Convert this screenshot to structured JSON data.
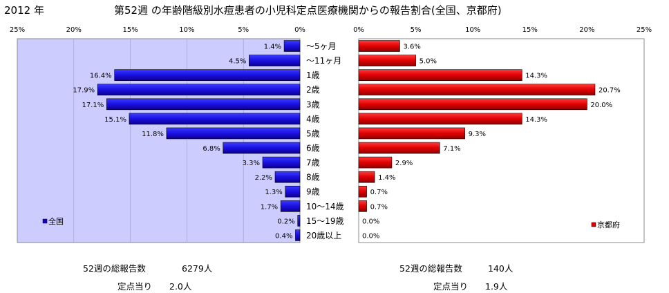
{
  "header": {
    "year": "2012 年",
    "title": "第52週 の年齢階級別水痘患者の小児科定点医療機関からの報告割合(全国、京都府)"
  },
  "chart_data": {
    "type": "bar",
    "orientation": "horizontal",
    "categories": [
      "～5ヶ月",
      "～11ヶ月",
      "1歳",
      "2歳",
      "3歳",
      "4歳",
      "5歳",
      "6歳",
      "7歳",
      "8歳",
      "9歳",
      "10～14歳",
      "15～19歳",
      "20歳以上"
    ],
    "xlim": [
      0,
      25
    ],
    "x_ticks": [
      "25%",
      "20%",
      "15%",
      "10%",
      "5%",
      "0%"
    ],
    "x_ticks_right": [
      "0%",
      "5%",
      "10%",
      "15%",
      "20%",
      "25%"
    ],
    "legend_position": "bottom-left",
    "series": [
      {
        "name": "全国",
        "color": "#1400cc",
        "values": [
          1.4,
          4.5,
          16.4,
          17.9,
          17.1,
          15.1,
          11.8,
          6.8,
          3.3,
          2.2,
          1.3,
          1.7,
          0.2,
          0.4
        ],
        "labels": [
          "1.4%",
          "4.5%",
          "16.4%",
          "17.9%",
          "17.1%",
          "15.1%",
          "11.8%",
          "6.8%",
          "3.3%",
          "2.2%",
          "1.3%",
          "1.7%",
          "0.2%",
          "0.4%"
        ]
      },
      {
        "name": "京都府",
        "color": "#dd0000",
        "values": [
          3.6,
          5.0,
          14.3,
          20.7,
          20.0,
          14.3,
          9.3,
          7.1,
          2.9,
          1.4,
          0.7,
          0.7,
          0.0,
          0.0
        ],
        "labels": [
          "3.6%",
          "5.0%",
          "14.3%",
          "20.7%",
          "20.0%",
          "14.3%",
          "9.3%",
          "7.1%",
          "2.9%",
          "1.4%",
          "0.7%",
          "0.7%",
          "0.0%",
          "0.0%"
        ]
      }
    ],
    "plot_bg": "#ccccff"
  },
  "stats": {
    "left": {
      "total_label": "52週の総報告数",
      "total_value": "6279人",
      "per_label": "定点当り",
      "per_value": "2.0人"
    },
    "right": {
      "total_label": "52週の総報告数",
      "total_value": "140人",
      "per_label": "定点当り",
      "per_value": "1.9人"
    }
  }
}
